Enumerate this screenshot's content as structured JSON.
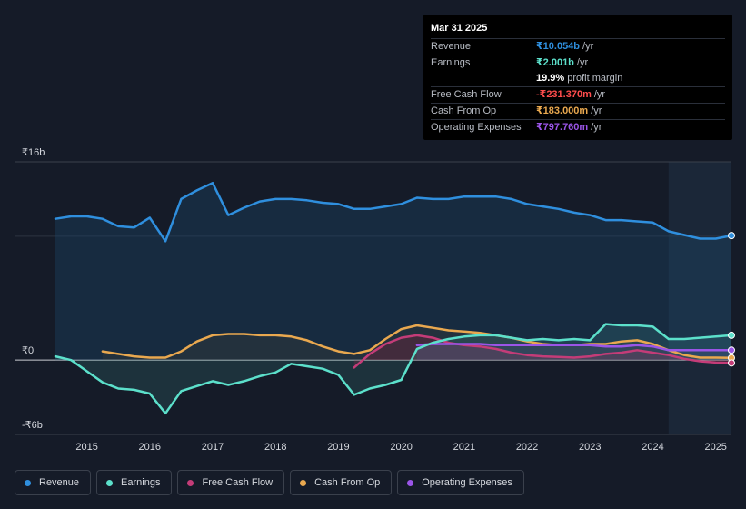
{
  "tooltip": {
    "date": "Mar 31 2025",
    "rows": [
      {
        "label": "Revenue",
        "value": "₹10.054b",
        "unit": "/yr",
        "color": "#2f8fde"
      },
      {
        "label": "Earnings",
        "value": "₹2.001b",
        "unit": "/yr",
        "color": "#5ce0cb"
      },
      {
        "label": "",
        "value": "19.9%",
        "unit": "profit margin",
        "color": "#ffffff"
      },
      {
        "label": "Free Cash Flow",
        "value": "-₹231.370m",
        "unit": "/yr",
        "color": "#ff4d4d"
      },
      {
        "label": "Cash From Op",
        "value": "₹183.000m",
        "unit": "/yr",
        "color": "#e9a84f"
      },
      {
        "label": "Operating Expenses",
        "value": "₹797.760m",
        "unit": "/yr",
        "color": "#9b55e8"
      }
    ]
  },
  "legend": [
    {
      "label": "Revenue",
      "color": "#2f8fde"
    },
    {
      "label": "Earnings",
      "color": "#5ce0cb"
    },
    {
      "label": "Free Cash Flow",
      "color": "#c43c78"
    },
    {
      "label": "Cash From Op",
      "color": "#e9a84f"
    },
    {
      "label": "Operating Expenses",
      "color": "#9b55e8"
    }
  ],
  "chart_data": {
    "type": "line",
    "title": "",
    "xlabel": "",
    "ylabel": "",
    "ylim": [
      -6,
      16
    ],
    "y_tick_labels": [
      "₹16b",
      "₹0",
      "-₹6b"
    ],
    "y_ticks": [
      16,
      0,
      -6
    ],
    "x_tick_labels": [
      "2015",
      "2016",
      "2017",
      "2018",
      "2019",
      "2020",
      "2021",
      "2022",
      "2023",
      "2024",
      "2025"
    ],
    "x_ticks": [
      2015,
      2016,
      2017,
      2018,
      2019,
      2020,
      2021,
      2022,
      2023,
      2024,
      2025
    ],
    "xlim": [
      2013.85,
      2025.25
    ],
    "forecast_start": 2024.25,
    "series": [
      {
        "name": "Revenue",
        "color": "#2f8fde",
        "area": true,
        "x": [
          2014.5,
          2014.75,
          2015.0,
          2015.25,
          2015.5,
          2015.75,
          2016.0,
          2016.25,
          2016.5,
          2016.75,
          2017.0,
          2017.25,
          2017.5,
          2017.75,
          2018.0,
          2018.25,
          2018.5,
          2018.75,
          2019.0,
          2019.25,
          2019.5,
          2019.75,
          2020.0,
          2020.25,
          2020.5,
          2020.75,
          2021.0,
          2021.25,
          2021.5,
          2021.75,
          2022.0,
          2022.25,
          2022.5,
          2022.75,
          2023.0,
          2023.25,
          2023.5,
          2023.75,
          2024.0,
          2024.25,
          2024.5,
          2024.75,
          2025.0,
          2025.25
        ],
        "values": [
          11.4,
          11.6,
          11.6,
          11.4,
          10.8,
          10.7,
          11.5,
          9.6,
          13.0,
          13.7,
          14.3,
          11.7,
          12.3,
          12.8,
          13.0,
          13.0,
          12.9,
          12.7,
          12.6,
          12.2,
          12.2,
          12.4,
          12.6,
          13.1,
          13.0,
          13.0,
          13.2,
          13.2,
          13.2,
          13.0,
          12.6,
          12.4,
          12.2,
          11.9,
          11.7,
          11.3,
          11.3,
          11.2,
          11.1,
          10.4,
          10.1,
          9.8,
          9.8,
          10.05
        ]
      },
      {
        "name": "Earnings",
        "color": "#5ce0cb",
        "area": true,
        "x": [
          2014.5,
          2014.75,
          2015.0,
          2015.25,
          2015.5,
          2015.75,
          2016.0,
          2016.25,
          2016.5,
          2016.75,
          2017.0,
          2017.25,
          2017.5,
          2017.75,
          2018.0,
          2018.25,
          2018.5,
          2018.75,
          2019.0,
          2019.25,
          2019.5,
          2019.75,
          2020.0,
          2020.25,
          2020.5,
          2020.75,
          2021.0,
          2021.25,
          2021.5,
          2021.75,
          2022.0,
          2022.25,
          2022.5,
          2022.75,
          2023.0,
          2023.25,
          2023.5,
          2023.75,
          2024.0,
          2024.25,
          2024.5,
          2024.75,
          2025.0,
          2025.25
        ],
        "values": [
          0.3,
          0.0,
          -0.9,
          -1.8,
          -2.3,
          -2.4,
          -2.7,
          -4.3,
          -2.5,
          -2.1,
          -1.7,
          -2.0,
          -1.7,
          -1.3,
          -1.0,
          -0.3,
          -0.5,
          -0.7,
          -1.2,
          -2.8,
          -2.3,
          -2.0,
          -1.6,
          0.9,
          1.4,
          1.7,
          1.9,
          2.0,
          2.0,
          1.8,
          1.6,
          1.7,
          1.6,
          1.7,
          1.6,
          2.9,
          2.8,
          2.8,
          2.7,
          1.7,
          1.7,
          1.8,
          1.9,
          2.0
        ]
      },
      {
        "name": "Free Cash Flow",
        "color": "#c43c78",
        "area": true,
        "x": [
          2019.25,
          2019.5,
          2019.75,
          2020.0,
          2020.25,
          2020.5,
          2020.75,
          2021.0,
          2021.25,
          2021.5,
          2021.75,
          2022.0,
          2022.25,
          2022.5,
          2022.75,
          2023.0,
          2023.25,
          2023.5,
          2023.75,
          2024.0,
          2024.25,
          2024.5,
          2024.75,
          2025.0,
          2025.25
        ],
        "values": [
          -0.6,
          0.5,
          1.3,
          1.8,
          2.0,
          1.8,
          1.4,
          1.2,
          1.1,
          0.9,
          0.6,
          0.4,
          0.3,
          0.25,
          0.2,
          0.3,
          0.5,
          0.6,
          0.8,
          0.6,
          0.4,
          0.1,
          -0.1,
          -0.2,
          -0.23
        ]
      },
      {
        "name": "Cash From Op",
        "color": "#e9a84f",
        "area": true,
        "x": [
          2015.25,
          2015.5,
          2015.75,
          2016.0,
          2016.25,
          2016.5,
          2016.75,
          2017.0,
          2017.25,
          2017.5,
          2017.75,
          2018.0,
          2018.25,
          2018.5,
          2018.75,
          2019.0,
          2019.25,
          2019.5,
          2019.75,
          2020.0,
          2020.25,
          2020.5,
          2020.75,
          2021.0,
          2021.25,
          2021.5,
          2021.75,
          2022.0,
          2022.25,
          2022.5,
          2022.75,
          2023.0,
          2023.25,
          2023.5,
          2023.75,
          2024.0,
          2024.25,
          2024.5,
          2024.75,
          2025.0,
          2025.25
        ],
        "values": [
          0.7,
          0.5,
          0.3,
          0.2,
          0.2,
          0.7,
          1.5,
          2.0,
          2.1,
          2.1,
          2.0,
          2.0,
          1.9,
          1.6,
          1.1,
          0.7,
          0.5,
          0.8,
          1.7,
          2.5,
          2.8,
          2.6,
          2.4,
          2.3,
          2.2,
          2.0,
          1.8,
          1.5,
          1.3,
          1.2,
          1.2,
          1.3,
          1.3,
          1.5,
          1.6,
          1.3,
          0.8,
          0.4,
          0.2,
          0.2,
          0.18
        ]
      },
      {
        "name": "Operating Expenses",
        "color": "#9b55e8",
        "area": true,
        "x": [
          2020.25,
          2020.5,
          2020.75,
          2021.0,
          2021.25,
          2021.5,
          2021.75,
          2022.0,
          2022.25,
          2022.5,
          2022.75,
          2023.0,
          2023.25,
          2023.5,
          2023.75,
          2024.0,
          2024.25,
          2024.5,
          2024.75,
          2025.0,
          2025.25
        ],
        "values": [
          1.2,
          1.3,
          1.3,
          1.3,
          1.3,
          1.2,
          1.2,
          1.2,
          1.2,
          1.2,
          1.2,
          1.2,
          1.1,
          1.1,
          1.2,
          1.1,
          0.8,
          0.8,
          0.8,
          0.8,
          0.8
        ]
      }
    ]
  }
}
